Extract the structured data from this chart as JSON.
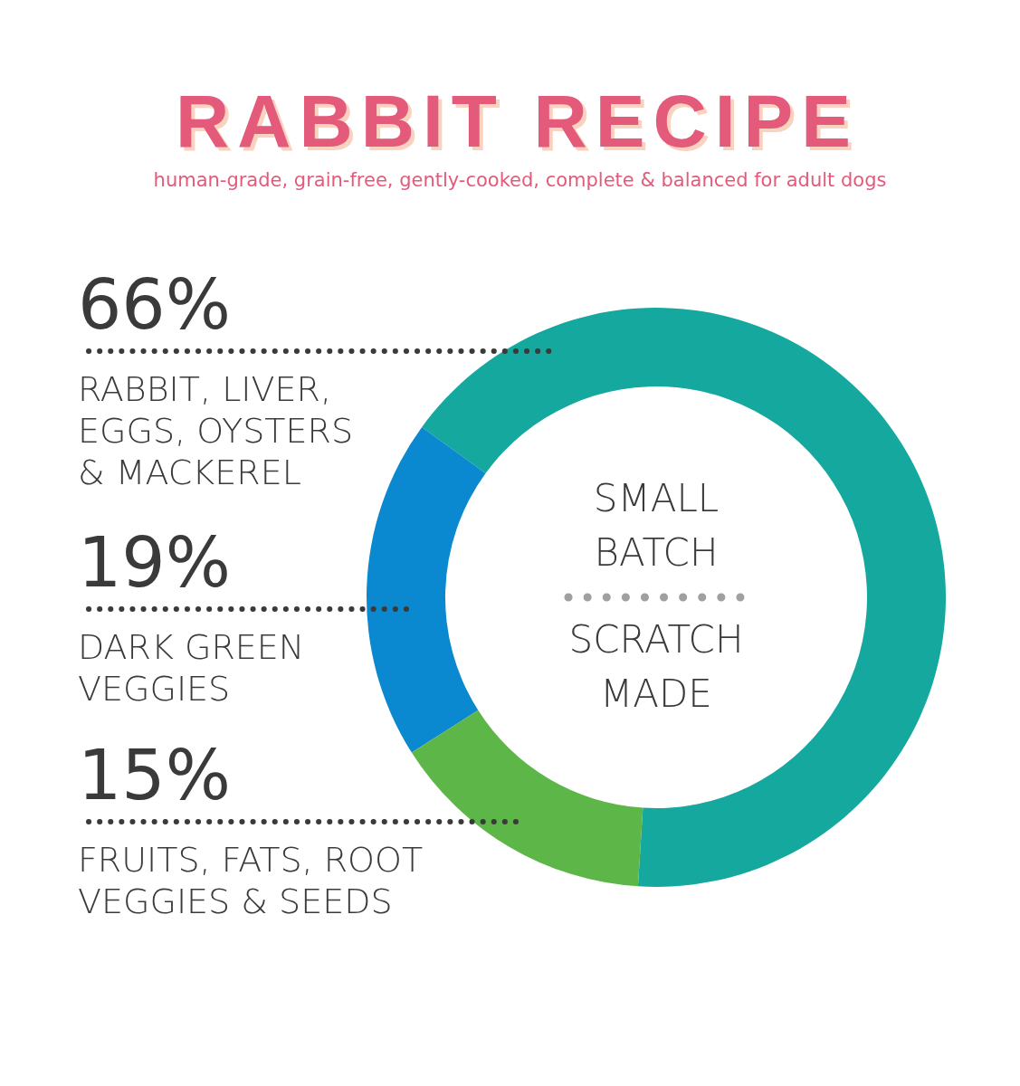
{
  "chart_data": {
    "type": "donut",
    "title": "RABBIT RECIPE",
    "subtitle": "human-grade, grain-free, gently-cooked, complete & balanced for adult dogs",
    "categories": [
      "RABBIT, LIVER,\nEGGS, OYSTERS\n& MACKEREL",
      "DARK GREEN\nVEGGIES",
      "FRUITS, FATS, ROOT\nVEGGIES & SEEDS"
    ],
    "values": [
      66,
      19,
      15
    ],
    "colors": [
      "#14a89e",
      "#0a88d0",
      "#5db648"
    ],
    "value_labels": [
      "66%",
      "19%",
      "15%"
    ],
    "annotations": [
      "SMALL\nBATCH",
      "SCRATCH\nMADE"
    ]
  }
}
